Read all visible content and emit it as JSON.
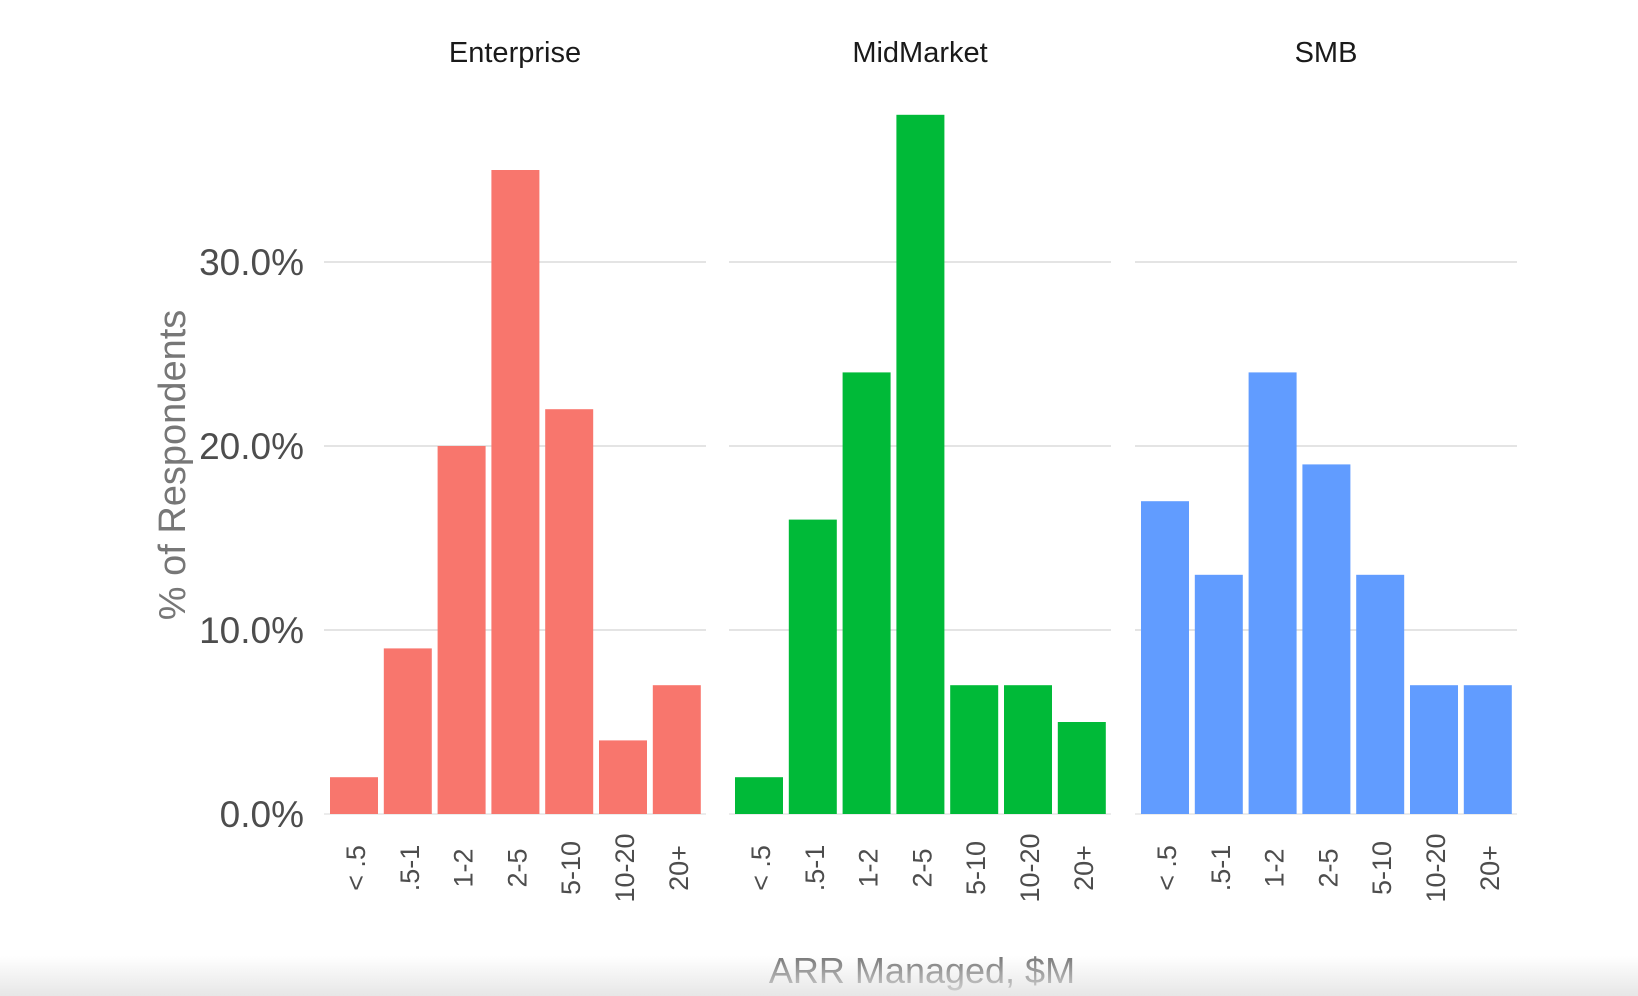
{
  "chart_data": {
    "type": "bar",
    "ylabel": "% of Respondents",
    "xlabel": "ARR Managed, $M",
    "ylim": [
      0,
      38
    ],
    "yticks": [
      0,
      10,
      20,
      30
    ],
    "ytick_labels": [
      "0.0%",
      "10.0%",
      "20.0%",
      "30.0%"
    ],
    "grid": true,
    "categories": [
      "< .5",
      ".5-1",
      "1-2",
      "2-5",
      "5-10",
      "10-20",
      "20+"
    ],
    "panels": [
      {
        "title": "Enterprise",
        "color": "#F8766D",
        "values": [
          2,
          9,
          20,
          35,
          22,
          4,
          7
        ]
      },
      {
        "title": "MidMarket",
        "color": "#00BA38",
        "values": [
          2,
          16,
          24,
          38,
          7,
          7,
          5
        ]
      },
      {
        "title": "SMB",
        "color": "#619CFF",
        "values": [
          17,
          13,
          24,
          19,
          13,
          7,
          7
        ]
      }
    ]
  }
}
